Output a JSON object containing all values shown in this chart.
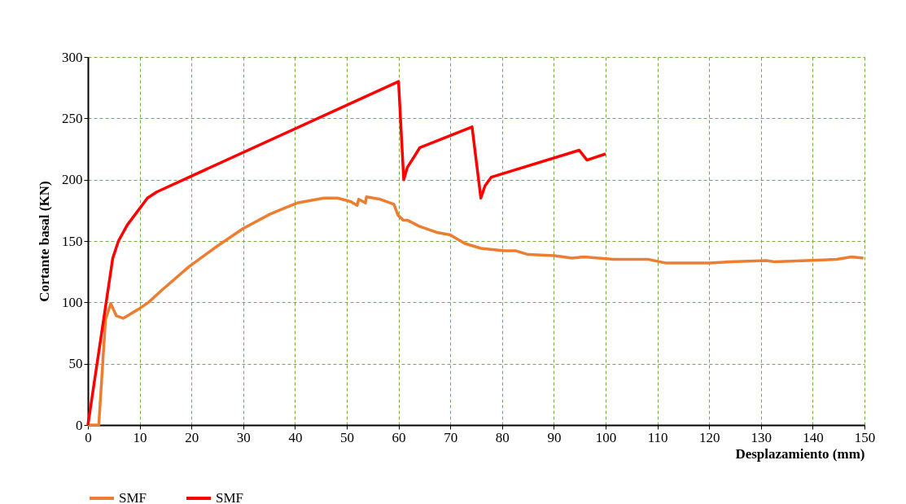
{
  "chart_data": {
    "type": "line",
    "xlabel": "Desplazamiento (mm)",
    "ylabel": "Cortante basal (KN)",
    "xlim": [
      0,
      150
    ],
    "xticks": [
      0,
      10,
      20,
      30,
      40,
      50,
      60,
      70,
      80,
      90,
      100,
      110,
      120,
      130,
      140,
      150
    ],
    "ylim": [
      0,
      300
    ],
    "yticks": [
      0,
      50,
      100,
      150,
      200,
      250,
      300
    ],
    "grid": true,
    "legend": "bottom",
    "marker": "none",
    "line_style": "solid",
    "series": [
      {
        "name": "SMF",
        "color": "#ed7d31",
        "x": [
          0,
          2.1,
          3.4,
          4.4,
          5.5,
          6.8,
          9.6,
          11.7,
          14.3,
          19.5,
          24.7,
          29.9,
          35.2,
          40.4,
          45.6,
          48.2,
          50,
          50.8,
          52,
          52.3,
          53.6,
          53.8,
          56.5,
          59.1,
          59.9,
          60.9,
          61.7,
          64,
          67.4,
          70,
          72.8,
          75.9,
          80.4,
          82.7,
          85,
          90.1,
          93.5,
          95.8,
          101.5,
          108.3,
          111.7,
          115.7,
          120.2,
          124.2,
          131,
          132.7,
          144.6,
          147.5,
          149.8
        ],
        "values": [
          0,
          0,
          86,
          99,
          89,
          87,
          94,
          100,
          110,
          129,
          145,
          160,
          172,
          181,
          185,
          185,
          183,
          182,
          179,
          184,
          181,
          186,
          184,
          180,
          171,
          167,
          167,
          162,
          157,
          155,
          148,
          144,
          142,
          142,
          139,
          138,
          136,
          137,
          135,
          135,
          132,
          132,
          132,
          133,
          134,
          133,
          135,
          137,
          136
        ]
      },
      {
        "name": "SMF",
        "color": "#ff0000",
        "x": [
          0,
          4.8,
          5.9,
          7.6,
          11.5,
          13.3,
          60,
          61,
          61.7,
          64.1,
          74.2,
          75.9,
          76.7,
          77.9,
          94.9,
          96.4,
          100
        ],
        "values": [
          0,
          136,
          150,
          163,
          185,
          190,
          280,
          200,
          210,
          226,
          243,
          185,
          195,
          202,
          224,
          216,
          221
        ]
      }
    ]
  }
}
